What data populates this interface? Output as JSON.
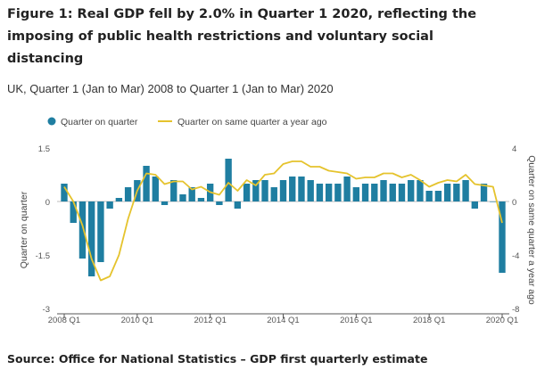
{
  "title": "Figure 1: Real GDP fell by 2.0% in Quarter 1 2020, reflecting the imposing of public health restrictions and voluntary social distancing",
  "subtitle": "UK, Quarter 1 (Jan to Mar) 2008 to Quarter 1 (Jan to Mar) 2020",
  "source": "Source: Office for National Statistics – GDP first quarterly estimate",
  "colors": {
    "bar": "#1f7ea1",
    "line": "#e5c32d",
    "zero": "#bbbbbb",
    "axis": "#555555"
  },
  "chart_data": {
    "type": "bar",
    "legend": {
      "position": "top-left",
      "bar_label": "Quarter on quarter",
      "line_label": "Quarter on same quarter a year ago"
    },
    "xlabel": "",
    "ylabel": "Quarter on quarter",
    "y2label": "Quarter on same quarter a year ago",
    "ylim": [
      -3,
      1.5
    ],
    "y2lim": [
      -8,
      4
    ],
    "yticks": [
      "1.5",
      "0",
      "-1.5",
      "-3"
    ],
    "y2ticks": [
      "4",
      "0",
      "-4",
      "-8"
    ],
    "xticks": [
      "2008 Q1",
      "2010 Q1",
      "2012 Q1",
      "2014 Q1",
      "2016 Q1",
      "2018 Q1",
      "2020 Q1"
    ],
    "categories": [
      "2008 Q1",
      "2008 Q2",
      "2008 Q3",
      "2008 Q4",
      "2009 Q1",
      "2009 Q2",
      "2009 Q3",
      "2009 Q4",
      "2010 Q1",
      "2010 Q2",
      "2010 Q3",
      "2010 Q4",
      "2011 Q1",
      "2011 Q2",
      "2011 Q3",
      "2011 Q4",
      "2012 Q1",
      "2012 Q2",
      "2012 Q3",
      "2012 Q4",
      "2013 Q1",
      "2013 Q2",
      "2013 Q3",
      "2013 Q4",
      "2014 Q1",
      "2014 Q2",
      "2014 Q3",
      "2014 Q4",
      "2015 Q1",
      "2015 Q2",
      "2015 Q3",
      "2015 Q4",
      "2016 Q1",
      "2016 Q2",
      "2016 Q3",
      "2016 Q4",
      "2017 Q1",
      "2017 Q2",
      "2017 Q3",
      "2017 Q4",
      "2018 Q1",
      "2018 Q2",
      "2018 Q3",
      "2018 Q4",
      "2019 Q1",
      "2019 Q2",
      "2019 Q3",
      "2019 Q4",
      "2020 Q1"
    ],
    "series": [
      {
        "name": "Quarter on quarter",
        "kind": "bar",
        "values": [
          0.5,
          -0.6,
          -1.6,
          -2.1,
          -1.7,
          -0.2,
          0.1,
          0.4,
          0.6,
          1.0,
          0.7,
          -0.1,
          0.6,
          0.2,
          0.4,
          0.1,
          0.5,
          -0.1,
          1.2,
          -0.2,
          0.5,
          0.6,
          0.6,
          0.4,
          0.6,
          0.7,
          0.7,
          0.6,
          0.5,
          0.5,
          0.5,
          0.7,
          0.4,
          0.5,
          0.5,
          0.6,
          0.5,
          0.5,
          0.6,
          0.6,
          0.3,
          0.3,
          0.5,
          0.5,
          0.6,
          -0.2,
          0.5,
          0.0,
          -2.0
        ]
      },
      {
        "name": "Quarter on same quarter a year ago",
        "kind": "line",
        "axis": "right",
        "values": [
          1.1,
          0.0,
          -1.8,
          -4.3,
          -5.9,
          -5.6,
          -4.0,
          -1.3,
          0.8,
          2.1,
          2.0,
          1.3,
          1.5,
          1.5,
          0.9,
          1.1,
          0.7,
          0.5,
          1.4,
          0.8,
          1.6,
          1.2,
          2.0,
          2.1,
          2.8,
          3.0,
          3.0,
          2.6,
          2.6,
          2.3,
          2.2,
          2.1,
          1.7,
          1.8,
          1.8,
          2.1,
          2.1,
          1.8,
          2.0,
          1.6,
          1.1,
          1.4,
          1.6,
          1.5,
          2.0,
          1.3,
          1.2,
          1.1,
          -1.6
        ]
      }
    ]
  }
}
